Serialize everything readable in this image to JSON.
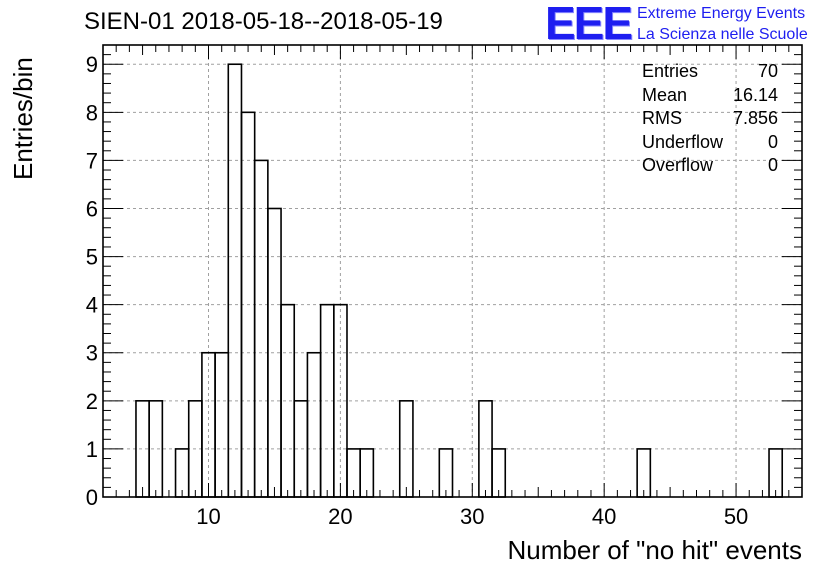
{
  "chart_data": {
    "type": "bar",
    "title": "SIEN-01 2018-05-18--2018-05-19",
    "xlabel": "Number of \"no hit\" events",
    "ylabel": "Entries/bin",
    "xlim": [
      2,
      55
    ],
    "ylim": [
      0,
      9.4
    ],
    "xticks": [
      "10",
      "20",
      "30",
      "40",
      "50"
    ],
    "yticks": [
      "0",
      "1",
      "2",
      "3",
      "4",
      "5",
      "6",
      "7",
      "8",
      "9"
    ],
    "grid": true,
    "bin_width": 1,
    "bins": [
      {
        "x": 5,
        "value": 2
      },
      {
        "x": 6,
        "value": 2
      },
      {
        "x": 8,
        "value": 1
      },
      {
        "x": 9,
        "value": 2
      },
      {
        "x": 10,
        "value": 3
      },
      {
        "x": 11,
        "value": 3
      },
      {
        "x": 12,
        "value": 9
      },
      {
        "x": 13,
        "value": 8
      },
      {
        "x": 14,
        "value": 7
      },
      {
        "x": 15,
        "value": 6
      },
      {
        "x": 16,
        "value": 4
      },
      {
        "x": 17,
        "value": 2
      },
      {
        "x": 18,
        "value": 3
      },
      {
        "x": 19,
        "value": 4
      },
      {
        "x": 20,
        "value": 4
      },
      {
        "x": 21,
        "value": 1
      },
      {
        "x": 22,
        "value": 1
      },
      {
        "x": 25,
        "value": 2
      },
      {
        "x": 28,
        "value": 1
      },
      {
        "x": 31,
        "value": 2
      },
      {
        "x": 32,
        "value": 1
      },
      {
        "x": 43,
        "value": 1
      },
      {
        "x": 53,
        "value": 1
      }
    ],
    "stats": {
      "entries_label": "Entries",
      "entries": "70",
      "mean_label": "Mean",
      "mean": "16.14",
      "rms_label": "RMS",
      "rms": "7.856",
      "underflow_label": "Underflow",
      "underflow": "0",
      "overflow_label": "Overflow",
      "overflow": "0"
    }
  },
  "logo": {
    "mark": "EEE",
    "line1": "Extreme Energy Events",
    "line2": "La Scienza nelle Scuole"
  },
  "colors": {
    "logo": "#1e1ef0",
    "grid": "#a0a0a0"
  }
}
